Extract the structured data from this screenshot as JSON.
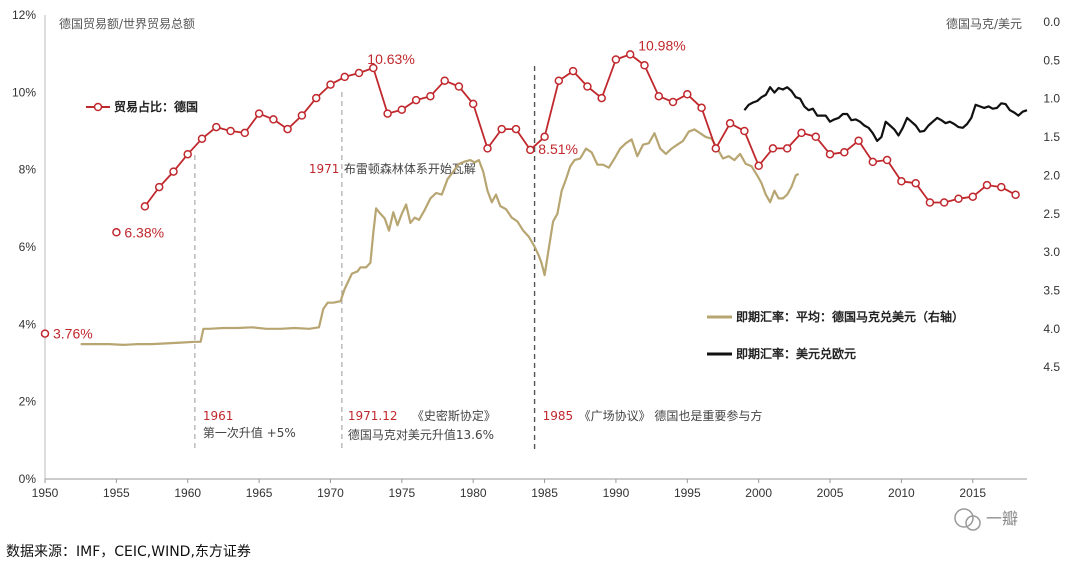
{
  "chart_data": {
    "type": "line",
    "left_axis_title": "德国贸易额/世界贸易总额",
    "right_axis_title": "德国马克/美元",
    "source": "数据来源：IMF，CEIC,WIND,东方证券",
    "watermark": "一瓣",
    "x_ticks": [
      "1950",
      "1955",
      "1960",
      "1965",
      "1970",
      "1975",
      "1980",
      "1985",
      "1990",
      "1995",
      "2000",
      "2005",
      "2010",
      "2015"
    ],
    "y_left_ticks": [
      "0%",
      "2%",
      "4%",
      "6%",
      "8%",
      "10%",
      "12%"
    ],
    "y_right_ticks": [
      "0.0",
      "0.5",
      "1.0",
      "1.5",
      "2.0",
      "2.5",
      "3.0",
      "3.5",
      "4.0",
      "4.5"
    ],
    "xlim": [
      1950,
      2018.8
    ],
    "ylim_left": [
      0,
      12
    ],
    "ylim_right": [
      0,
      5
    ],
    "right_axis_inverted": true,
    "legend": {
      "share": "贸易占比：德国",
      "dm_usd": "即期汇率：平均：德国马克兑美元（右轴）",
      "usd_eur": "即期汇率：美元兑欧元"
    },
    "series": [
      {
        "name": "贸易占比：德国",
        "axis": "left",
        "color": "#c0282d",
        "x": [
          1950,
          1955,
          1957,
          1958,
          1959,
          1960,
          1961,
          1962,
          1963,
          1964,
          1965,
          1966,
          1967,
          1968,
          1969,
          1970,
          1971,
          1972,
          1973,
          1974,
          1975,
          1976,
          1977,
          1978,
          1979,
          1980,
          1981,
          1982,
          1983,
          1984,
          1985,
          1986,
          1987,
          1988,
          1989,
          1990,
          1991,
          1992,
          1993,
          1994,
          1995,
          1996,
          1997,
          1998,
          1999,
          2000,
          2001,
          2002,
          2003,
          2004,
          2005,
          2006,
          2007,
          2008,
          2009,
          2010,
          2011,
          2012,
          2013,
          2014,
          2015,
          2016,
          2017,
          2018
        ],
        "values": [
          3.76,
          6.38,
          7.05,
          7.55,
          7.95,
          8.4,
          8.8,
          9.1,
          9.0,
          8.95,
          9.45,
          9.3,
          9.05,
          9.4,
          9.85,
          10.2,
          10.4,
          10.5,
          10.63,
          9.45,
          9.55,
          9.8,
          9.9,
          10.3,
          10.15,
          9.7,
          8.55,
          9.05,
          9.05,
          8.51,
          8.85,
          10.3,
          10.55,
          10.15,
          9.85,
          10.85,
          10.98,
          10.7,
          9.9,
          9.75,
          9.95,
          9.6,
          8.55,
          9.2,
          9.0,
          8.1,
          8.55,
          8.55,
          8.95,
          8.85,
          8.4,
          8.45,
          8.75,
          8.2,
          8.25,
          7.7,
          7.65,
          7.15,
          7.15,
          7.25,
          7.3,
          7.6,
          7.55,
          7.35
        ],
        "markers": true,
        "discontinuities_after": [
          0,
          1
        ]
      },
      {
        "name": "即期汇率：平均：德国马克兑美元（右轴）",
        "axis": "right",
        "color": "#b7a572",
        "x": [
          1952.5,
          1953.5,
          1954.5,
          1955.5,
          1956.5,
          1957.5,
          1958.5,
          1959.5,
          1960.5,
          1960.9,
          1961.1,
          1961.5,
          1962.5,
          1963.5,
          1964.5,
          1965.5,
          1966.5,
          1967.5,
          1968.5,
          1969.2,
          1969.5,
          1969.8,
          1970.2,
          1970.7,
          1971.0,
          1971.5,
          1971.9,
          1972.1,
          1972.5,
          1972.8,
          1973.0,
          1973.2,
          1973.5,
          1973.8,
          1974.1,
          1974.4,
          1974.7,
          1975.0,
          1975.3,
          1975.6,
          1975.9,
          1976.2,
          1976.6,
          1977.0,
          1977.4,
          1977.8,
          1978.2,
          1978.6,
          1979.0,
          1979.4,
          1979.8,
          1980.1,
          1980.4,
          1980.7,
          1981.0,
          1981.3,
          1981.6,
          1981.9,
          1982.3,
          1982.7,
          1983.1,
          1983.5,
          1983.9,
          1984.3,
          1984.6,
          1984.8,
          1985.0,
          1985.3,
          1985.6,
          1985.9,
          1986.2,
          1986.5,
          1986.8,
          1987.1,
          1987.5,
          1987.9,
          1988.3,
          1988.7,
          1989.1,
          1989.5,
          1989.9,
          1990.3,
          1990.7,
          1991.1,
          1991.5,
          1991.9,
          1992.3,
          1992.7,
          1993.1,
          1993.5,
          1993.9,
          1994.3,
          1994.7,
          1995.1,
          1995.5,
          1995.9,
          1996.3,
          1996.7,
          1997.1,
          1997.5,
          1997.9,
          1998.3,
          1998.7,
          1999.1,
          1999.5,
          1999.9,
          2000.2,
          2000.5,
          2000.8,
          2001.1,
          2001.4,
          2001.7,
          2002.0,
          2002.3,
          2002.6,
          2002.8
        ],
        "values": [
          4.2,
          4.2,
          4.2,
          4.21,
          4.2,
          4.2,
          4.19,
          4.18,
          4.17,
          4.17,
          4.0,
          4.0,
          3.99,
          3.99,
          3.98,
          4.0,
          4.0,
          3.99,
          4.0,
          3.98,
          3.74,
          3.66,
          3.66,
          3.64,
          3.48,
          3.28,
          3.25,
          3.2,
          3.2,
          3.14,
          2.75,
          2.43,
          2.5,
          2.56,
          2.72,
          2.48,
          2.65,
          2.5,
          2.38,
          2.62,
          2.55,
          2.58,
          2.45,
          2.3,
          2.23,
          2.25,
          2.05,
          1.95,
          1.85,
          1.82,
          1.8,
          1.83,
          1.8,
          1.95,
          2.2,
          2.35,
          2.25,
          2.4,
          2.44,
          2.55,
          2.6,
          2.72,
          2.8,
          2.93,
          3.05,
          3.15,
          3.3,
          2.95,
          2.6,
          2.5,
          2.2,
          2.05,
          1.88,
          1.8,
          1.78,
          1.65,
          1.7,
          1.86,
          1.86,
          1.9,
          1.78,
          1.65,
          1.58,
          1.53,
          1.75,
          1.6,
          1.58,
          1.45,
          1.65,
          1.72,
          1.65,
          1.6,
          1.55,
          1.43,
          1.4,
          1.45,
          1.5,
          1.52,
          1.65,
          1.78,
          1.75,
          1.8,
          1.72,
          1.85,
          1.88,
          2.0,
          2.1,
          2.25,
          2.35,
          2.2,
          2.3,
          2.3,
          2.25,
          2.15,
          2.0,
          1.98
        ]
      },
      {
        "name": "即期汇率：美元兑欧元",
        "axis": "right",
        "color": "#111111",
        "x": [
          1999.0,
          1999.3,
          1999.6,
          1999.9,
          2000.2,
          2000.5,
          2000.8,
          2001.1,
          2001.4,
          2001.7,
          2002.0,
          2002.3,
          2002.6,
          2002.9,
          2003.2,
          2003.5,
          2003.8,
          2004.1,
          2004.4,
          2004.7,
          2005.0,
          2005.3,
          2005.6,
          2005.9,
          2006.2,
          2006.5,
          2006.8,
          2007.1,
          2007.4,
          2007.7,
          2008.0,
          2008.3,
          2008.6,
          2008.9,
          2009.2,
          2009.5,
          2009.8,
          2010.1,
          2010.4,
          2010.7,
          2011.0,
          2011.3,
          2011.6,
          2011.9,
          2012.2,
          2012.5,
          2012.8,
          2013.1,
          2013.4,
          2013.7,
          2014.0,
          2014.3,
          2014.6,
          2014.9,
          2015.2,
          2015.5,
          2015.8,
          2016.1,
          2016.4,
          2016.7,
          2017.0,
          2017.3,
          2017.6,
          2017.9,
          2018.2,
          2018.5,
          2018.8
        ],
        "values": [
          1.15,
          1.08,
          1.05,
          1.03,
          0.98,
          0.95,
          0.85,
          0.92,
          0.86,
          0.88,
          0.85,
          0.9,
          0.98,
          1.0,
          1.1,
          1.15,
          1.13,
          1.22,
          1.22,
          1.22,
          1.3,
          1.27,
          1.25,
          1.2,
          1.2,
          1.28,
          1.27,
          1.3,
          1.35,
          1.38,
          1.45,
          1.55,
          1.5,
          1.3,
          1.35,
          1.4,
          1.48,
          1.38,
          1.25,
          1.3,
          1.35,
          1.43,
          1.42,
          1.35,
          1.3,
          1.25,
          1.28,
          1.32,
          1.3,
          1.33,
          1.37,
          1.38,
          1.33,
          1.25,
          1.08,
          1.1,
          1.12,
          1.1,
          1.13,
          1.12,
          1.06,
          1.07,
          1.15,
          1.18,
          1.22,
          1.17,
          1.15
        ]
      }
    ],
    "point_labels": [
      {
        "x": 1950,
        "y": 3.76,
        "text": "3.76%"
      },
      {
        "x": 1955,
        "y": 6.38,
        "text": "6.38%"
      },
      {
        "x": 1973,
        "y": 10.63,
        "text": "10.63%"
      },
      {
        "x": 1984,
        "y": 8.51,
        "text": "8.51%"
      },
      {
        "x": 1991,
        "y": 10.98,
        "text": "10.98%"
      }
    ],
    "event_lines": [
      {
        "x": 1960.5,
        "label_year": "1961",
        "label_text": "第一次升值 +5%"
      },
      {
        "x": 1970.8,
        "label_year": "1971.12",
        "label_text": "《史密斯协定》",
        "label_text2": "德国马克对美元升值13.6%",
        "label_year_top": "1971",
        "label_text_top": "布雷顿森林体系开始瓦解"
      },
      {
        "x": 1984.3,
        "label_year": "1985",
        "label_text": "《广场协议》 德国也是重要参与方"
      }
    ]
  }
}
